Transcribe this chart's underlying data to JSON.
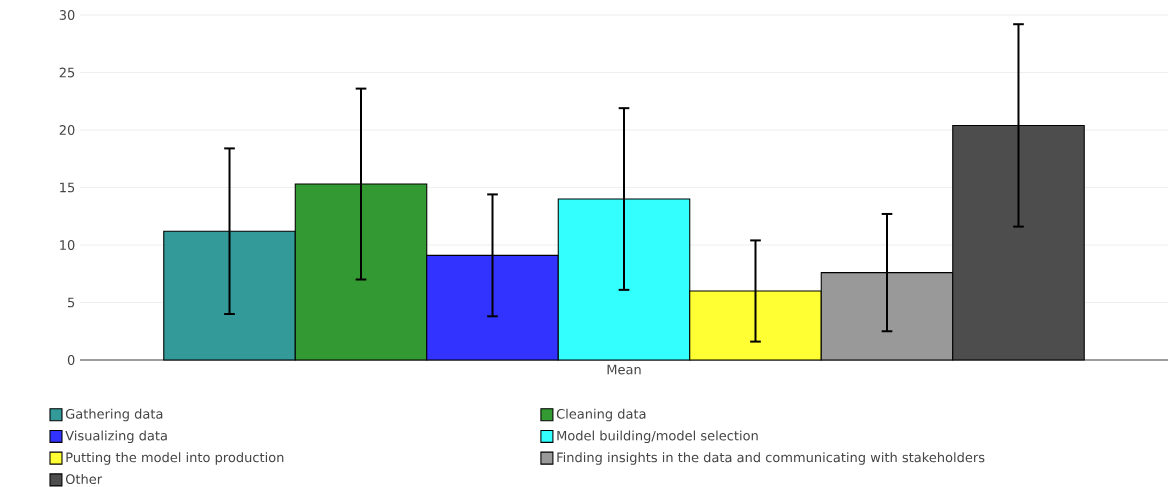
{
  "chart_data": {
    "type": "bar",
    "categories": [
      "Mean"
    ],
    "series": [
      {
        "name": "Gathering data",
        "color": "#339999",
        "values": [
          11.2
        ],
        "errors": [
          7.2
        ]
      },
      {
        "name": "Cleaning data",
        "color": "#339933",
        "values": [
          15.3
        ],
        "errors": [
          8.3
        ]
      },
      {
        "name": "Visualizing data",
        "color": "#3333ff",
        "values": [
          9.1
        ],
        "errors": [
          5.3
        ]
      },
      {
        "name": "Model building/model selection",
        "color": "#33ffff",
        "values": [
          14.0
        ],
        "errors": [
          7.9
        ]
      },
      {
        "name": "Putting the model into production",
        "color": "#ffff33",
        "values": [
          6.0
        ],
        "errors": [
          4.4
        ]
      },
      {
        "name": "Finding insights in the data and communicating with stakeholders",
        "color": "#999999",
        "values": [
          7.6
        ],
        "errors": [
          5.1
        ]
      },
      {
        "name": "Other",
        "color": "#4d4d4d",
        "values": [
          20.4
        ],
        "errors": [
          8.8
        ]
      }
    ],
    "ylim": [
      0,
      30
    ],
    "yticks": [
      0,
      5,
      10,
      15,
      20,
      25,
      30
    ],
    "grid": "y",
    "legend": "bottom"
  }
}
